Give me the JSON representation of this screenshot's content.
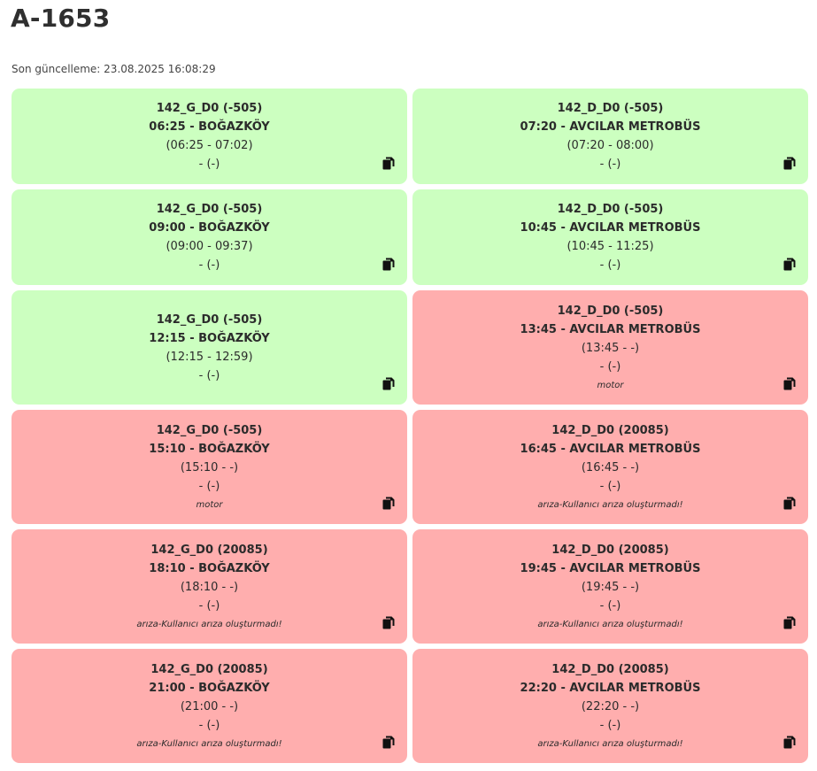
{
  "title": "A-1653",
  "last_updated": "Son güncelleme: 23.08.2025 16:08:29",
  "colors": {
    "ok": "#ccffc0",
    "fault": "#ffaeae"
  },
  "trips": [
    {
      "status": "ok",
      "route": "142_G_D0 (-505)",
      "departure": "06:25 - BOĞAZKÖY",
      "time_range": "(06:25 - 07:02)",
      "extra": "- (-)",
      "note": "",
      "icon": "copy-icon"
    },
    {
      "status": "ok",
      "route": "142_D_D0 (-505)",
      "departure": "07:20 - AVCILAR METROBÜS",
      "time_range": "(07:20 - 08:00)",
      "extra": "- (-)",
      "note": "",
      "icon": "copy-icon"
    },
    {
      "status": "ok",
      "route": "142_G_D0 (-505)",
      "departure": "09:00 - BOĞAZKÖY",
      "time_range": "(09:00 - 09:37)",
      "extra": "- (-)",
      "note": "",
      "icon": "copy-icon"
    },
    {
      "status": "ok",
      "route": "142_D_D0 (-505)",
      "departure": "10:45 - AVCILAR METROBÜS",
      "time_range": "(10:45 - 11:25)",
      "extra": "- (-)",
      "note": "",
      "icon": "copy-icon"
    },
    {
      "status": "ok",
      "route": "142_G_D0 (-505)",
      "departure": "12:15 - BOĞAZKÖY",
      "time_range": "(12:15 - 12:59)",
      "extra": "- (-)",
      "note": "",
      "icon": "copy-icon"
    },
    {
      "status": "fault",
      "route": "142_D_D0 (-505)",
      "departure": "13:45 - AVCILAR METROBÜS",
      "time_range": "(13:45 - -)",
      "extra": "- (-)",
      "note": "motor",
      "icon": "copy-icon"
    },
    {
      "status": "fault",
      "route": "142_G_D0 (-505)",
      "departure": "15:10 - BOĞAZKÖY",
      "time_range": "(15:10 - -)",
      "extra": "- (-)",
      "note": "motor",
      "icon": "copy-icon"
    },
    {
      "status": "fault",
      "route": "142_D_D0 (20085)",
      "departure": "16:45 - AVCILAR METROBÜS",
      "time_range": "(16:45 - -)",
      "extra": "- (-)",
      "note": "arıza-Kullanıcı arıza oluşturmadı!",
      "icon": "copy-icon"
    },
    {
      "status": "fault",
      "route": "142_G_D0 (20085)",
      "departure": "18:10 - BOĞAZKÖY",
      "time_range": "(18:10 - -)",
      "extra": "- (-)",
      "note": "arıza-Kullanıcı arıza oluşturmadı!",
      "icon": "copy-icon"
    },
    {
      "status": "fault",
      "route": "142_D_D0 (20085)",
      "departure": "19:45 - AVCILAR METROBÜS",
      "time_range": "(19:45 - -)",
      "extra": "- (-)",
      "note": "arıza-Kullanıcı arıza oluşturmadı!",
      "icon": "copy-icon"
    },
    {
      "status": "fault",
      "route": "142_G_D0 (20085)",
      "departure": "21:00 - BOĞAZKÖY",
      "time_range": "(21:00 - -)",
      "extra": "- (-)",
      "note": "arıza-Kullanıcı arıza oluşturmadı!",
      "icon": "copy-icon"
    },
    {
      "status": "fault",
      "route": "142_D_D0 (20085)",
      "departure": "22:20 - AVCILAR METROBÜS",
      "time_range": "(22:20 - -)",
      "extra": "- (-)",
      "note": "arıza-Kullanıcı arıza oluşturmadı!",
      "icon": "copy-icon"
    }
  ]
}
